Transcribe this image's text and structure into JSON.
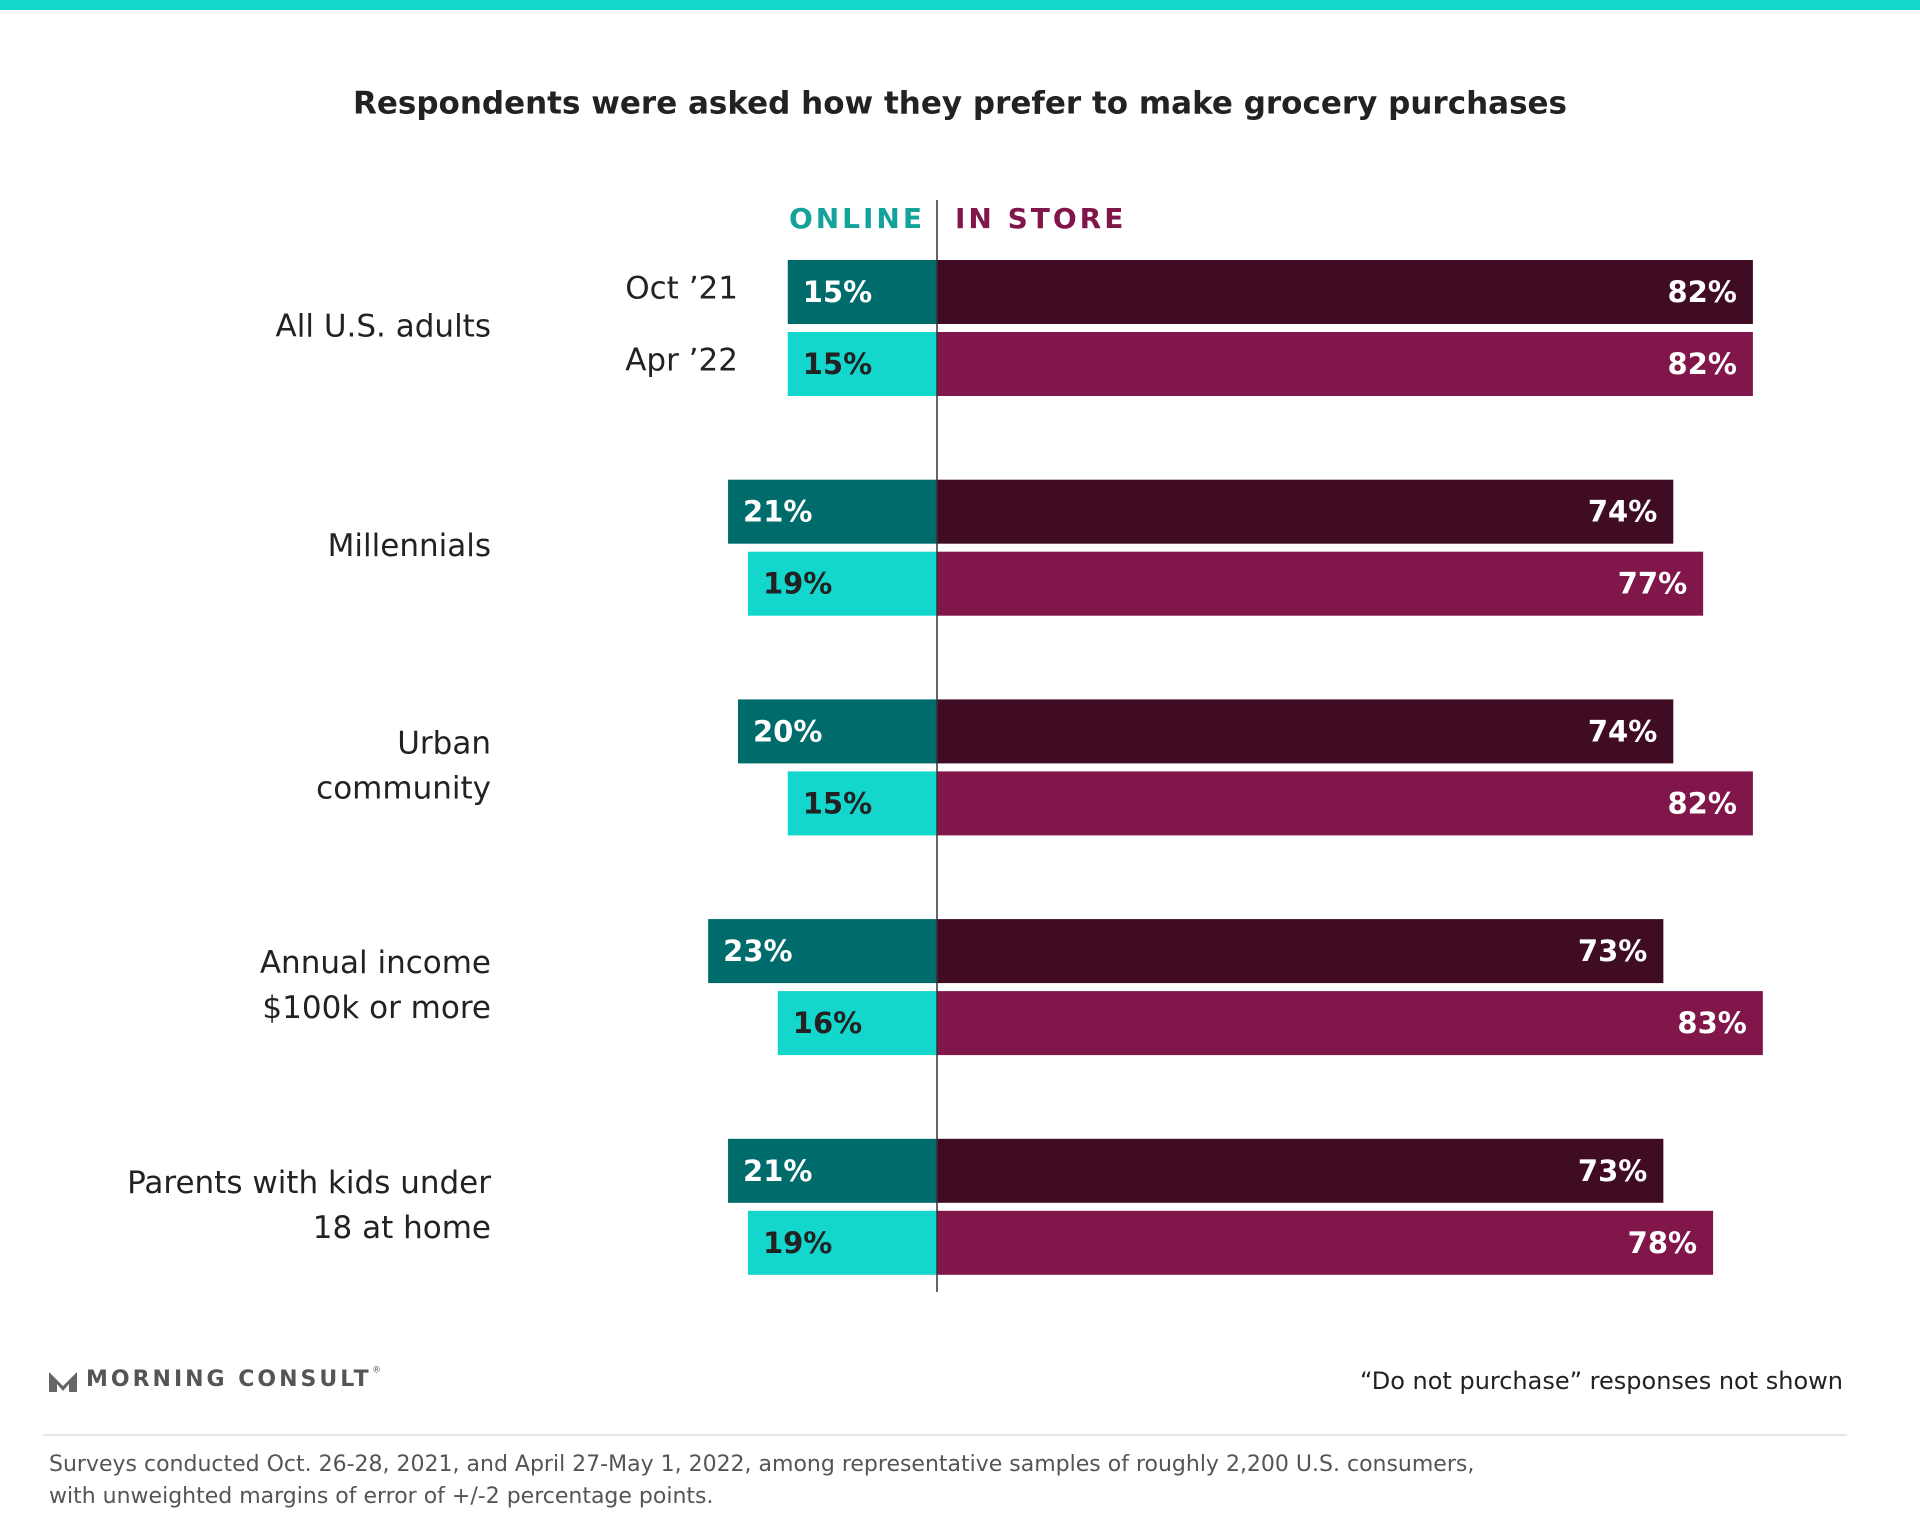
{
  "chart_data": {
    "type": "diverging-bar",
    "title": "Respondents were asked how they prefer to make grocery purchases",
    "categories": [
      [
        "All U.S. adults"
      ],
      [
        "Millennials"
      ],
      [
        "Urban",
        "community"
      ],
      [
        "Annual income",
        "$100k or more"
      ],
      [
        "Parents with kids under",
        "18 at home"
      ]
    ],
    "periods": [
      "Oct ’21",
      "Apr ’22"
    ],
    "series": [
      {
        "name": "ONLINE",
        "side": "left",
        "color": "#14a39b",
        "colors": [
          "#006b6b",
          "#13d6cc"
        ],
        "label_colors": [
          "#ffffff",
          "#222222"
        ],
        "values": [
          [
            15,
            15
          ],
          [
            21,
            19
          ],
          [
            20,
            15
          ],
          [
            23,
            16
          ],
          [
            21,
            19
          ]
        ],
        "value_labels": [
          [
            "15%",
            "15%"
          ],
          [
            "21%",
            "19%"
          ],
          [
            "20%",
            "15%"
          ],
          [
            "23%",
            "16%"
          ],
          [
            "21%",
            "19%"
          ]
        ]
      },
      {
        "name": "IN STORE",
        "side": "right",
        "color": "#80164a",
        "colors": [
          "#400c24",
          "#80164a"
        ],
        "label_colors": [
          "#ffffff",
          "#ffffff"
        ],
        "values": [
          [
            82,
            82
          ],
          [
            74,
            77
          ],
          [
            74,
            82
          ],
          [
            73,
            83
          ],
          [
            73,
            78
          ]
        ],
        "value_labels": [
          [
            "82%",
            "82%"
          ],
          [
            "74%",
            "77%"
          ],
          [
            "74%",
            "82%"
          ],
          [
            "73%",
            "83%"
          ],
          [
            "73%",
            "78%"
          ]
        ]
      }
    ],
    "brand": "MORNING CONSULT",
    "brand_mark": "®",
    "note": "“Do not purchase” responses not shown",
    "source": [
      "Surveys conducted Oct. 26-28, 2021, and April 27-May 1, 2022, among representative samples of roughly 2,200 U.S. consumers,",
      "with unweighted margins of error of +/-2 percentage points."
    ]
  }
}
